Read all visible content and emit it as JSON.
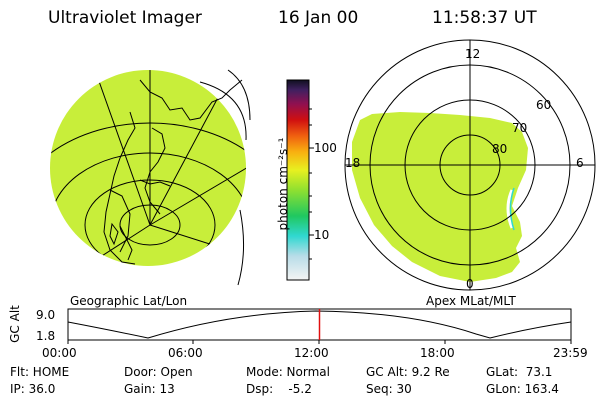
{
  "header": {
    "instrument": "Ultraviolet Imager",
    "date": "16 Jan 00",
    "time": "11:58:37 UT"
  },
  "colors": {
    "image_fill": "#c8ee3a",
    "marker": "#e01010"
  },
  "colorbar": {
    "unit_label": "photon cm⁻²s⁻¹",
    "tick_100": "100",
    "tick_10": "10"
  },
  "geo_map": {
    "caption": "Geographic Lat/Lon"
  },
  "polar_map": {
    "caption": "Apex MLat/MLT",
    "mlt_12": "12",
    "mlt_18": "18",
    "mlt_6": "6",
    "mlt_0": "0",
    "lat_60": "60",
    "lat_70": "70",
    "lat_80": "80"
  },
  "altitude_plot": {
    "ylabel": "GC Alt",
    "y_high": "9.0",
    "y_low": "1.8",
    "x_ticks": [
      "00:00",
      "06:00",
      "12:00",
      "18:00",
      "23:59"
    ],
    "current_time_fraction": 0.5
  },
  "status": {
    "flt": "Flt: HOME",
    "ip": "IP: 36.0",
    "door": "Door: Open",
    "gain": "Gain: 13",
    "mode": "Mode: Normal",
    "dsp": "Dsp:    -5.2",
    "gc_alt": "GC Alt: 9.2 Re",
    "seq": "Seq: 30",
    "glat": "GLat:  73.1",
    "glon": "GLon: 163.4"
  }
}
